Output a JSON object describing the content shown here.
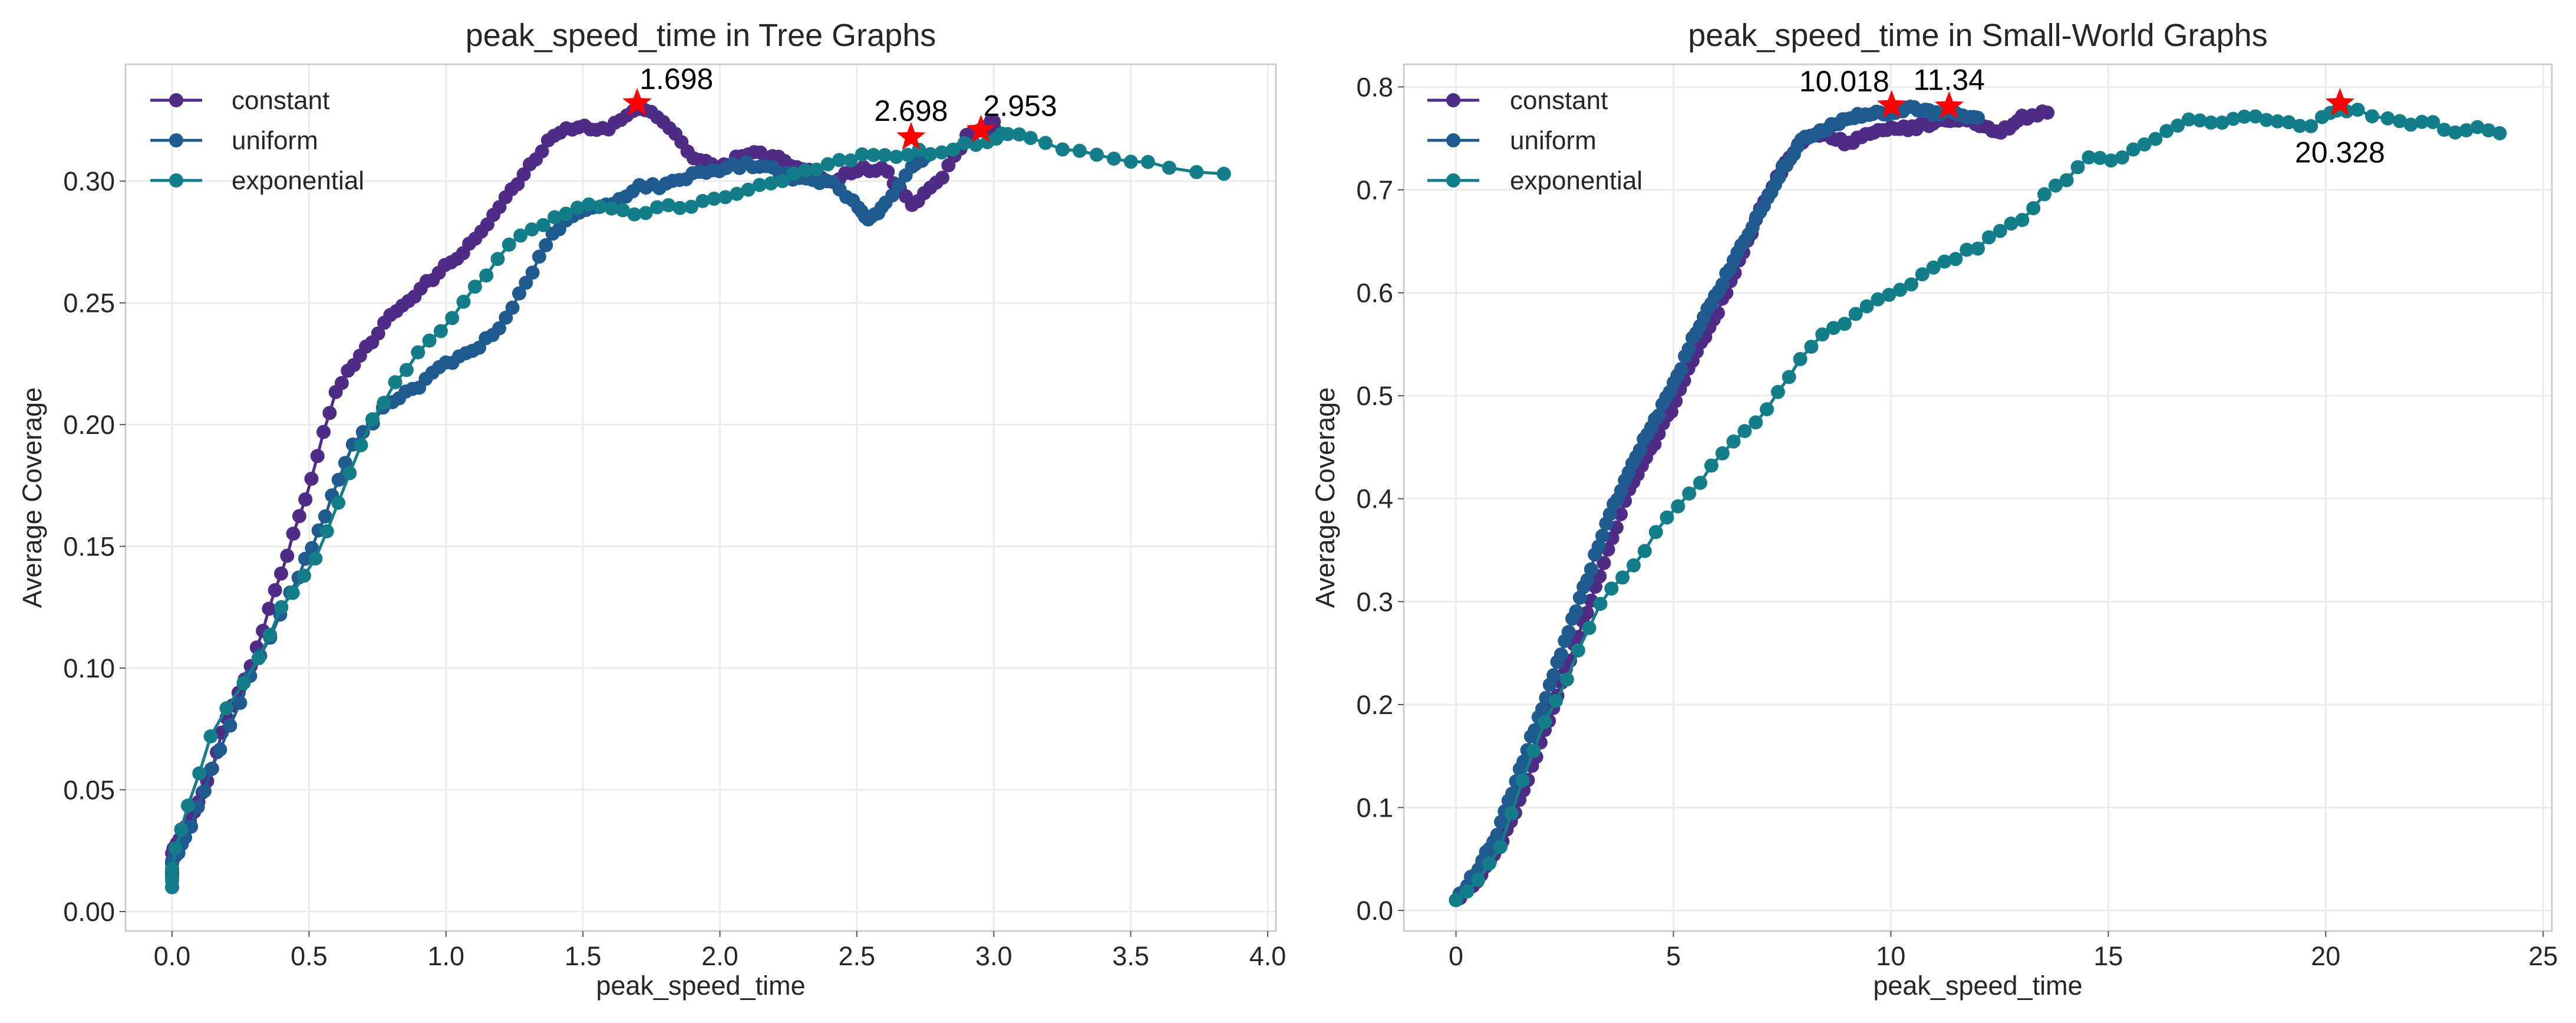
{
  "colors": {
    "constant": "#4f2c86",
    "uniform": "#1f5b8f",
    "exponential": "#137d8a",
    "peak_marker": "#ff0000",
    "grid": "#ebebeb",
    "frame": "#cccccc"
  },
  "chart_data": [
    {
      "type": "line",
      "title": "peak_speed_time in Tree Graphs",
      "xlabel": "peak_speed_time",
      "ylabel": "Average Coverage",
      "xlim": [
        -0.17,
        4.03
      ],
      "ylim": [
        -0.008,
        0.348
      ],
      "xticks": [
        0.0,
        0.5,
        1.0,
        1.5,
        2.0,
        2.5,
        3.0,
        3.5,
        4.0
      ],
      "xtick_labels": [
        "0.0",
        "0.5",
        "1.0",
        "1.5",
        "2.0",
        "2.5",
        "3.0",
        "3.5",
        "4.0"
      ],
      "yticks": [
        0.0,
        0.05,
        0.1,
        0.15,
        0.2,
        0.25,
        0.3
      ],
      "ytick_labels": [
        "0.00",
        "0.05",
        "0.10",
        "0.15",
        "0.20",
        "0.25",
        "0.30"
      ],
      "legend": [
        "constant",
        "uniform",
        "exponential"
      ],
      "legend_loc": "upper left",
      "series": [
        {
          "name": "constant",
          "anchors": [
            [
              0.0,
              0.01
            ],
            [
              0.0,
              0.025
            ],
            [
              0.05,
              0.035
            ],
            [
              0.12,
              0.05
            ],
            [
              0.2,
              0.08
            ],
            [
              0.3,
              0.105
            ],
            [
              0.4,
              0.14
            ],
            [
              0.5,
              0.175
            ],
            [
              0.6,
              0.215
            ],
            [
              0.7,
              0.23
            ],
            [
              0.8,
              0.245
            ],
            [
              0.9,
              0.255
            ],
            [
              1.0,
              0.265
            ],
            [
              1.1,
              0.275
            ],
            [
              1.2,
              0.29
            ],
            [
              1.3,
              0.305
            ],
            [
              1.4,
              0.32
            ],
            [
              1.5,
              0.322
            ],
            [
              1.6,
              0.322
            ],
            [
              1.7,
              0.33
            ],
            [
              1.8,
              0.325
            ],
            [
              1.9,
              0.31
            ],
            [
              2.0,
              0.305
            ],
            [
              2.1,
              0.312
            ],
            [
              2.2,
              0.31
            ],
            [
              2.3,
              0.305
            ],
            [
              2.4,
              0.3
            ],
            [
              2.5,
              0.305
            ],
            [
              2.6,
              0.305
            ],
            [
              2.7,
              0.29
            ],
            [
              2.8,
              0.3
            ],
            [
              2.9,
              0.318
            ],
            [
              3.0,
              0.325
            ],
            [
              3.0,
              0.318
            ]
          ],
          "points": 150
        },
        {
          "name": "uniform",
          "anchors": [
            [
              0.0,
              0.01
            ],
            [
              0.0,
              0.02
            ],
            [
              0.05,
              0.03
            ],
            [
              0.15,
              0.06
            ],
            [
              0.3,
              0.1
            ],
            [
              0.45,
              0.135
            ],
            [
              0.55,
              0.16
            ],
            [
              0.65,
              0.19
            ],
            [
              0.8,
              0.21
            ],
            [
              0.9,
              0.216
            ],
            [
              1.0,
              0.225
            ],
            [
              1.1,
              0.23
            ],
            [
              1.2,
              0.24
            ],
            [
              1.3,
              0.26
            ],
            [
              1.4,
              0.28
            ],
            [
              1.5,
              0.288
            ],
            [
              1.6,
              0.29
            ],
            [
              1.7,
              0.298
            ],
            [
              1.8,
              0.298
            ],
            [
              1.9,
              0.303
            ],
            [
              2.0,
              0.305
            ],
            [
              2.1,
              0.307
            ],
            [
              2.2,
              0.305
            ],
            [
              2.3,
              0.3
            ],
            [
              2.4,
              0.3
            ],
            [
              2.5,
              0.29
            ],
            [
              2.55,
              0.284
            ],
            [
              2.6,
              0.29
            ],
            [
              2.7,
              0.305
            ],
            [
              2.75,
              0.31
            ]
          ],
          "points": 120
        },
        {
          "name": "exponential",
          "anchors": [
            [
              0.0,
              0.01
            ],
            [
              0.0,
              0.02
            ],
            [
              0.05,
              0.04
            ],
            [
              0.15,
              0.075
            ],
            [
              0.3,
              0.1
            ],
            [
              0.4,
              0.125
            ],
            [
              0.5,
              0.14
            ],
            [
              0.6,
              0.165
            ],
            [
              0.7,
              0.195
            ],
            [
              0.8,
              0.215
            ],
            [
              0.9,
              0.23
            ],
            [
              1.0,
              0.24
            ],
            [
              1.1,
              0.255
            ],
            [
              1.2,
              0.27
            ],
            [
              1.3,
              0.28
            ],
            [
              1.4,
              0.285
            ],
            [
              1.5,
              0.29
            ],
            [
              1.6,
              0.288
            ],
            [
              1.7,
              0.287
            ],
            [
              1.8,
              0.29
            ],
            [
              1.9,
              0.29
            ],
            [
              2.0,
              0.293
            ],
            [
              2.1,
              0.297
            ],
            [
              2.2,
              0.3
            ],
            [
              2.3,
              0.303
            ],
            [
              2.4,
              0.307
            ],
            [
              2.5,
              0.31
            ],
            [
              2.6,
              0.31
            ],
            [
              2.7,
              0.312
            ],
            [
              2.8,
              0.312
            ],
            [
              2.9,
              0.315
            ],
            [
              3.0,
              0.317
            ],
            [
              3.05,
              0.32
            ],
            [
              3.15,
              0.317
            ],
            [
              3.3,
              0.312
            ],
            [
              3.45,
              0.31
            ],
            [
              3.6,
              0.307
            ],
            [
              3.84,
              0.303
            ]
          ],
          "points": 90
        }
      ],
      "peaks": [
        {
          "series": "constant",
          "x": 1.698,
          "y": 0.332,
          "label": "1.698",
          "label_pos": "above-right"
        },
        {
          "series": "uniform",
          "x": 2.698,
          "y": 0.318,
          "label": "2.698",
          "label_pos": "above"
        },
        {
          "series": "exponential",
          "x": 2.953,
          "y": 0.321,
          "label": "2.953",
          "label_pos": "above-right"
        }
      ]
    },
    {
      "type": "line",
      "title": "peak_speed_time in Small-World Graphs",
      "xlabel": "peak_speed_time",
      "ylabel": "Average Coverage",
      "xlim": [
        -1.2,
        25.2
      ],
      "ylim": [
        -0.02,
        0.822
      ],
      "xticks": [
        0,
        5,
        10,
        15,
        20,
        25
      ],
      "xtick_labels": [
        "0",
        "5",
        "10",
        "15",
        "20",
        "25"
      ],
      "yticks": [
        0.0,
        0.1,
        0.2,
        0.3,
        0.4,
        0.5,
        0.6,
        0.7,
        0.8
      ],
      "ytick_labels": [
        "0.0",
        "0.1",
        "0.2",
        "0.3",
        "0.4",
        "0.5",
        "0.6",
        "0.7",
        "0.8"
      ],
      "legend": [
        "constant",
        "uniform",
        "exponential"
      ],
      "legend_loc": "upper left",
      "series": [
        {
          "name": "constant",
          "anchors": [
            [
              0.0,
              0.01
            ],
            [
              0.5,
              0.03
            ],
            [
              1.0,
              0.06
            ],
            [
              1.5,
              0.11
            ],
            [
              2.0,
              0.17
            ],
            [
              2.5,
              0.23
            ],
            [
              3.0,
              0.29
            ],
            [
              3.5,
              0.35
            ],
            [
              4.0,
              0.41
            ],
            [
              4.5,
              0.45
            ],
            [
              5.0,
              0.49
            ],
            [
              5.5,
              0.54
            ],
            [
              6.0,
              0.58
            ],
            [
              6.5,
              0.63
            ],
            [
              7.0,
              0.68
            ],
            [
              7.5,
              0.72
            ],
            [
              8.0,
              0.75
            ],
            [
              8.5,
              0.755
            ],
            [
              9.0,
              0.745
            ],
            [
              9.5,
              0.755
            ],
            [
              10.0,
              0.76
            ],
            [
              10.5,
              0.76
            ],
            [
              11.0,
              0.765
            ],
            [
              11.5,
              0.77
            ],
            [
              12.0,
              0.765
            ],
            [
              12.5,
              0.755
            ],
            [
              13.0,
              0.77
            ],
            [
              13.6,
              0.775
            ]
          ],
          "points": 140
        },
        {
          "name": "uniform",
          "anchors": [
            [
              0.0,
              0.01
            ],
            [
              0.5,
              0.04
            ],
            [
              1.0,
              0.08
            ],
            [
              1.5,
              0.14
            ],
            [
              2.0,
              0.2
            ],
            [
              2.5,
              0.26
            ],
            [
              3.0,
              0.32
            ],
            [
              3.5,
              0.38
            ],
            [
              4.0,
              0.43
            ],
            [
              4.5,
              0.47
            ],
            [
              5.0,
              0.51
            ],
            [
              5.5,
              0.56
            ],
            [
              6.0,
              0.6
            ],
            [
              6.5,
              0.64
            ],
            [
              7.0,
              0.68
            ],
            [
              7.5,
              0.72
            ],
            [
              8.0,
              0.75
            ],
            [
              8.5,
              0.76
            ],
            [
              9.0,
              0.77
            ],
            [
              9.5,
              0.775
            ],
            [
              10.0,
              0.775
            ],
            [
              10.5,
              0.78
            ],
            [
              11.0,
              0.775
            ],
            [
              11.5,
              0.775
            ],
            [
              12.0,
              0.77
            ]
          ],
          "points": 140
        },
        {
          "name": "exponential",
          "anchors": [
            [
              0.0,
              0.01
            ],
            [
              0.5,
              0.03
            ],
            [
              1.0,
              0.06
            ],
            [
              1.5,
              0.12
            ],
            [
              2.0,
              0.18
            ],
            [
              2.5,
              0.22
            ],
            [
              3.0,
              0.27
            ],
            [
              3.5,
              0.31
            ],
            [
              4.0,
              0.33
            ],
            [
              4.5,
              0.36
            ],
            [
              5.0,
              0.39
            ],
            [
              5.5,
              0.41
            ],
            [
              6.0,
              0.44
            ],
            [
              6.5,
              0.46
            ],
            [
              7.0,
              0.48
            ],
            [
              7.5,
              0.51
            ],
            [
              8.0,
              0.54
            ],
            [
              8.5,
              0.56
            ],
            [
              9.0,
              0.57
            ],
            [
              9.5,
              0.59
            ],
            [
              10.0,
              0.6
            ],
            [
              10.5,
              0.61
            ],
            [
              11.0,
              0.625
            ],
            [
              11.5,
              0.635
            ],
            [
              12.0,
              0.645
            ],
            [
              12.5,
              0.66
            ],
            [
              13.0,
              0.67
            ],
            [
              13.5,
              0.695
            ],
            [
              14.0,
              0.71
            ],
            [
              14.5,
              0.73
            ],
            [
              15.0,
              0.73
            ],
            [
              15.5,
              0.735
            ],
            [
              16.0,
              0.75
            ],
            [
              16.5,
              0.76
            ],
            [
              17.0,
              0.77
            ],
            [
              17.5,
              0.765
            ],
            [
              18.0,
              0.77
            ],
            [
              18.5,
              0.77
            ],
            [
              19.0,
              0.765
            ],
            [
              19.5,
              0.76
            ],
            [
              20.0,
              0.77
            ],
            [
              20.3,
              0.78
            ],
            [
              20.8,
              0.775
            ],
            [
              21.5,
              0.77
            ],
            [
              22.0,
              0.765
            ],
            [
              22.5,
              0.765
            ],
            [
              23.0,
              0.755
            ],
            [
              23.5,
              0.76
            ],
            [
              24.0,
              0.755
            ]
          ],
          "points": 95
        }
      ],
      "peaks": [
        {
          "series": "constant",
          "x": 10.018,
          "y": 0.782,
          "label": "10.018",
          "label_pos": "above-left"
        },
        {
          "series": "uniform",
          "x": 11.34,
          "y": 0.781,
          "label": "11.34",
          "label_pos": "above"
        },
        {
          "series": "exponential",
          "x": 20.328,
          "y": 0.784,
          "label": "20.328",
          "label_pos": "below"
        }
      ]
    }
  ]
}
